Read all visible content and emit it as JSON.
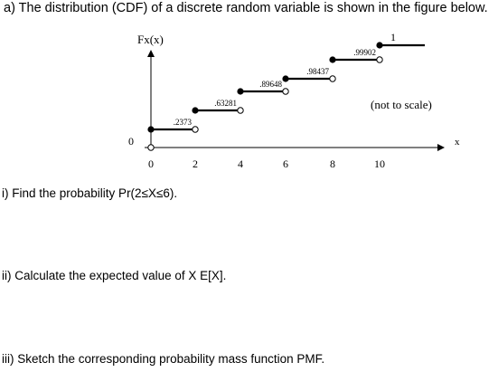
{
  "question": {
    "heading": "a) The distribution (CDF) of a discrete random variable is shown in the figure below."
  },
  "figure": {
    "y_axis_label": "Fx(x)",
    "x_axis_label": "x",
    "zero_label": "0",
    "note": "(not to scale)",
    "x_ticks": [
      "0",
      "2",
      "4",
      "6",
      "8",
      "10"
    ]
  },
  "chart_data": {
    "type": "line",
    "title": "",
    "xlabel": "x",
    "ylabel": "Fx(x)",
    "steps": [
      {
        "x_start": 0,
        "x_end": 2,
        "F": 0.2373,
        "label": ".2373"
      },
      {
        "x_start": 2,
        "x_end": 4,
        "F": 0.63281,
        "label": ".63281"
      },
      {
        "x_start": 4,
        "x_end": 6,
        "F": 0.89648,
        "label": ".89648"
      },
      {
        "x_start": 6,
        "x_end": 8,
        "F": 0.98437,
        "label": ".98437"
      },
      {
        "x_start": 8,
        "x_end": 10,
        "F": 0.99902,
        "label": ".99902"
      },
      {
        "x_start": 10,
        "x_end": null,
        "F": 1,
        "label": "1"
      }
    ]
  },
  "sub_questions": {
    "q1": "i) Find the probability Pr(2≤X≤6).",
    "q2": "ii) Calculate the expected value of X E[X].",
    "q3": "iii) Sketch the corresponding probability mass function PMF."
  }
}
